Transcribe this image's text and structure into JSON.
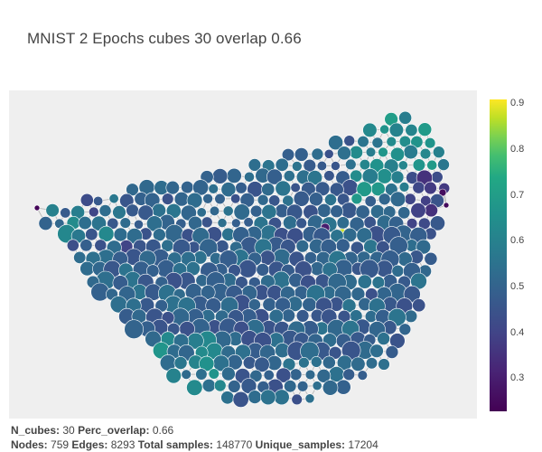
{
  "chart_data": {
    "type": "scatter",
    "title": "MNIST 2 Epochs cubes 30 overlap 0.66",
    "colorscale": "viridis",
    "colorbar": {
      "min": 0.23,
      "max": 0.91,
      "ticks": [
        "0.3",
        "0.4",
        "0.5",
        "0.6",
        "0.7",
        "0.8",
        "0.9"
      ],
      "tick_values": [
        0.3,
        0.4,
        0.5,
        0.6,
        0.7,
        0.8,
        0.9
      ]
    },
    "background_color": "#efefef",
    "edge_color": "#b3b3b3",
    "node_outline_color": "#ffffff"
  },
  "footer": {
    "line1": [
      {
        "label": "N_cubes:",
        "value": "30"
      },
      {
        "label": "Perc_overlap:",
        "value": "0.66"
      }
    ],
    "line2": [
      {
        "label": "Nodes:",
        "value": "759"
      },
      {
        "label": "Edges:",
        "value": "8293"
      },
      {
        "label": "Total samples:",
        "value": "148770"
      },
      {
        "label": "Unique_samples:",
        "value": "17204"
      }
    ]
  }
}
